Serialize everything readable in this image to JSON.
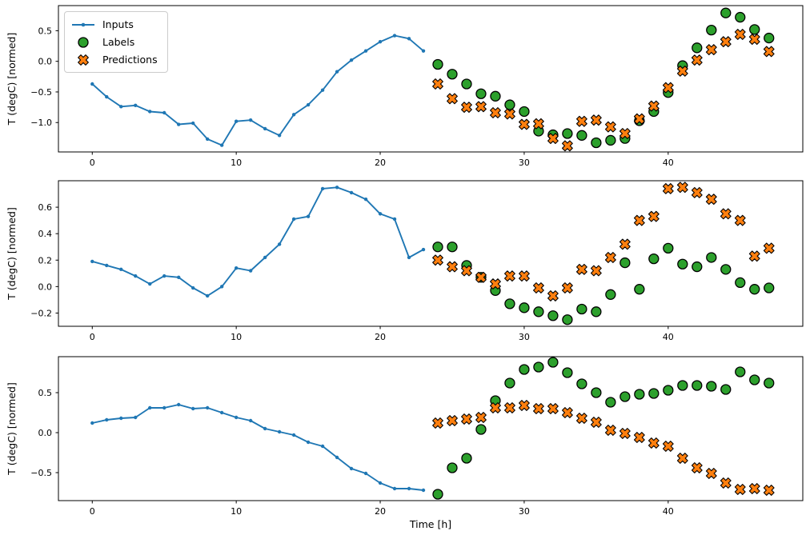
{
  "figure": {
    "background": "#ffffff",
    "type": "matplotlib-multi-subplot-timeseries"
  },
  "colors": {
    "inputs_line": "#1f77b4",
    "labels_fill": "#2ca02c",
    "predictions_fill": "#ff7f0e",
    "marker_edge": "#000000",
    "axes": "#000000",
    "legend_border": "#cccccc"
  },
  "legend": {
    "position": "upper-left-of-first-subplot",
    "items": [
      {
        "label": "Inputs",
        "marker": "line-dot",
        "color": "#1f77b4"
      },
      {
        "label": "Labels",
        "marker": "circle",
        "color": "#2ca02c"
      },
      {
        "label": "Predictions",
        "marker": "x-cross",
        "color": "#ff7f0e"
      }
    ]
  },
  "chart_data": [
    {
      "type": "line+scatter",
      "subplot": 1,
      "ylabel": "T (degC) [normed]",
      "xlabel": "",
      "xlim": [
        -2.35,
        49.35
      ],
      "ylim": [
        -1.48,
        0.91
      ],
      "xticks": [
        0,
        10,
        20,
        30,
        40
      ],
      "yticks": [
        0.5,
        0.0,
        -0.5,
        -1.0
      ],
      "grid": false,
      "series": [
        {
          "name": "Inputs",
          "type": "line",
          "marker": "dot",
          "color": "#1f77b4",
          "x_start": 0,
          "values": [
            -0.37,
            -0.58,
            -0.74,
            -0.72,
            -0.82,
            -0.84,
            -1.03,
            -1.01,
            -1.27,
            -1.37,
            -0.98,
            -0.96,
            -1.1,
            -1.21,
            -0.87,
            -0.71,
            -0.47,
            -0.17,
            0.02,
            0.17,
            0.32,
            0.42,
            0.37,
            0.17
          ]
        },
        {
          "name": "Labels",
          "type": "scatter",
          "marker": "circle",
          "color": "#2ca02c",
          "edge": "#000000",
          "x_start": 24,
          "values": [
            -0.05,
            -0.21,
            -0.37,
            -0.53,
            -0.57,
            -0.71,
            -0.82,
            -1.14,
            -1.2,
            -1.18,
            -1.21,
            -1.33,
            -1.29,
            -1.26,
            -0.97,
            -0.82,
            -0.51,
            -0.07,
            0.22,
            0.51,
            0.79,
            0.72,
            0.52,
            0.38
          ]
        },
        {
          "name": "Predictions",
          "type": "scatter",
          "marker": "X",
          "color": "#ff7f0e",
          "edge": "#000000",
          "x_start": 24,
          "values": [
            -0.37,
            -0.61,
            -0.75,
            -0.74,
            -0.84,
            -0.86,
            -1.03,
            -1.02,
            -1.26,
            -1.38,
            -0.98,
            -0.96,
            -1.07,
            -1.18,
            -0.94,
            -0.73,
            -0.43,
            -0.16,
            0.02,
            0.19,
            0.32,
            0.44,
            0.36,
            0.16
          ]
        }
      ]
    },
    {
      "type": "line+scatter",
      "subplot": 2,
      "ylabel": "T (degC) [normed]",
      "xlabel": "",
      "xlim": [
        -2.35,
        49.35
      ],
      "ylim": [
        -0.3,
        0.8
      ],
      "xticks": [
        0,
        10,
        20,
        30,
        40
      ],
      "yticks": [
        0.6,
        0.4,
        0.2,
        0.0,
        -0.2
      ],
      "grid": false,
      "series": [
        {
          "name": "Inputs",
          "type": "line",
          "marker": "dot",
          "color": "#1f77b4",
          "x_start": 0,
          "values": [
            0.19,
            0.16,
            0.13,
            0.08,
            0.02,
            0.08,
            0.07,
            -0.01,
            -0.07,
            0.0,
            0.14,
            0.12,
            0.22,
            0.32,
            0.51,
            0.53,
            0.74,
            0.75,
            0.71,
            0.66,
            0.55,
            0.51,
            0.22,
            0.28
          ]
        },
        {
          "name": "Labels",
          "type": "scatter",
          "marker": "circle",
          "color": "#2ca02c",
          "edge": "#000000",
          "x_start": 24,
          "values": [
            0.3,
            0.3,
            0.16,
            0.07,
            -0.03,
            -0.13,
            -0.16,
            -0.19,
            -0.22,
            -0.25,
            -0.17,
            -0.19,
            -0.06,
            0.18,
            -0.02,
            0.21,
            0.29,
            0.17,
            0.15,
            0.22,
            0.13,
            0.03,
            -0.02,
            -0.01
          ]
        },
        {
          "name": "Predictions",
          "type": "scatter",
          "marker": "X",
          "color": "#ff7f0e",
          "edge": "#000000",
          "x_start": 24,
          "values": [
            0.2,
            0.15,
            0.12,
            0.07,
            0.02,
            0.08,
            0.08,
            -0.01,
            -0.07,
            -0.01,
            0.13,
            0.12,
            0.22,
            0.32,
            0.5,
            0.53,
            0.74,
            0.75,
            0.71,
            0.66,
            0.55,
            0.5,
            0.23,
            0.29
          ]
        }
      ]
    },
    {
      "type": "line+scatter",
      "subplot": 3,
      "ylabel": "T (degC) [normed]",
      "xlabel": "Time [h]",
      "xlim": [
        -2.35,
        49.35
      ],
      "ylim": [
        -0.85,
        0.95
      ],
      "xticks": [
        0,
        10,
        20,
        30,
        40
      ],
      "yticks": [
        0.5,
        0.0,
        -0.5
      ],
      "grid": false,
      "series": [
        {
          "name": "Inputs",
          "type": "line",
          "marker": "dot",
          "color": "#1f77b4",
          "x_start": 0,
          "values": [
            0.12,
            0.16,
            0.18,
            0.19,
            0.31,
            0.31,
            0.35,
            0.3,
            0.31,
            0.25,
            0.19,
            0.15,
            0.05,
            0.01,
            -0.03,
            -0.12,
            -0.17,
            -0.31,
            -0.45,
            -0.51,
            -0.63,
            -0.7,
            -0.7,
            -0.72
          ]
        },
        {
          "name": "Labels",
          "type": "scatter",
          "marker": "circle",
          "color": "#2ca02c",
          "edge": "#000000",
          "x_start": 24,
          "values": [
            -0.77,
            -0.44,
            -0.32,
            0.04,
            0.4,
            0.62,
            0.79,
            0.82,
            0.88,
            0.75,
            0.61,
            0.5,
            0.38,
            0.45,
            0.48,
            0.49,
            0.53,
            0.59,
            0.59,
            0.58,
            0.54,
            0.76,
            0.66,
            0.62
          ]
        },
        {
          "name": "Predictions",
          "type": "scatter",
          "marker": "X",
          "color": "#ff7f0e",
          "edge": "#000000",
          "x_start": 24,
          "values": [
            0.12,
            0.15,
            0.17,
            0.19,
            0.31,
            0.31,
            0.34,
            0.3,
            0.3,
            0.25,
            0.18,
            0.13,
            0.03,
            -0.01,
            -0.06,
            -0.13,
            -0.17,
            -0.32,
            -0.44,
            -0.51,
            -0.63,
            -0.71,
            -0.7,
            -0.72
          ]
        }
      ]
    }
  ]
}
